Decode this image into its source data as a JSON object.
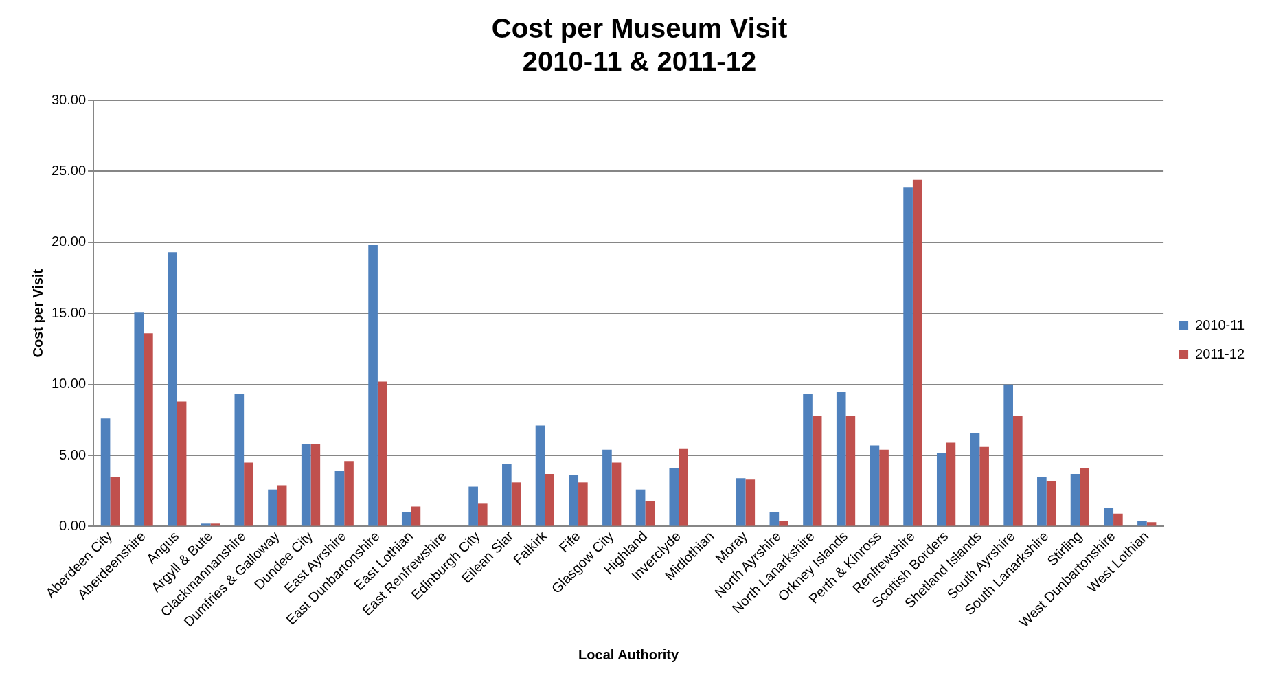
{
  "chart_data": {
    "type": "bar",
    "title": "Cost per Museum Visit",
    "subtitle": "2010-11 & 2011-12",
    "xlabel": "Local Authority",
    "ylabel": "Cost per Visit",
    "categories": [
      "Aberdeen City",
      "Aberdeenshire",
      "Angus",
      "Argyll & Bute",
      "Clackmannanshire",
      "Dumfries & Galloway",
      "Dundee City",
      "East Ayrshire",
      "East Dunbartonshire",
      "East Lothian",
      "East Renfrewshire",
      "Edinburgh City",
      "Eilean Siar",
      "Falkirk",
      "Fife",
      "Glasgow City",
      "Highland",
      "Inverclyde",
      "Midlothian",
      "Moray",
      "North Ayrshire",
      "North Lanarkshire",
      "Orkney Islands",
      "Perth & Kinross",
      "Renfrewshire",
      "Scottish Borders",
      "Shetland Islands",
      "South Ayrshire",
      "South Lanarkshire",
      "Stirling",
      "West Dunbartonshire",
      "West Lothian"
    ],
    "series": [
      {
        "name": "2010-11",
        "color": "#4f81bd",
        "values": [
          7.6,
          15.1,
          19.3,
          0.2,
          9.3,
          2.6,
          5.8,
          3.9,
          19.8,
          1.0,
          null,
          2.8,
          4.4,
          7.1,
          3.6,
          5.4,
          2.6,
          4.1,
          null,
          3.4,
          1.0,
          9.3,
          9.5,
          5.7,
          23.9,
          5.2,
          6.6,
          10.0,
          3.5,
          3.7,
          1.3,
          0.4
        ]
      },
      {
        "name": "2011-12",
        "color": "#c0504d",
        "values": [
          3.5,
          13.6,
          8.8,
          0.2,
          4.5,
          2.9,
          5.8,
          4.6,
          10.2,
          1.4,
          null,
          1.6,
          3.1,
          3.7,
          3.1,
          4.5,
          1.8,
          5.5,
          null,
          3.3,
          0.4,
          7.8,
          7.8,
          5.4,
          24.4,
          5.9,
          5.6,
          7.8,
          3.2,
          4.1,
          0.9,
          0.3
        ]
      }
    ],
    "ylim": [
      0,
      30
    ],
    "yticks": [
      {
        "value": 0,
        "label": "0.00"
      },
      {
        "value": 5,
        "label": "5.00"
      },
      {
        "value": 10,
        "label": "10.00"
      },
      {
        "value": 15,
        "label": "15.00"
      },
      {
        "value": 20,
        "label": "20.00"
      },
      {
        "value": 25,
        "label": "25.00"
      },
      {
        "value": 30,
        "label": "30.00"
      }
    ],
    "grid": "y",
    "legend": "right"
  }
}
